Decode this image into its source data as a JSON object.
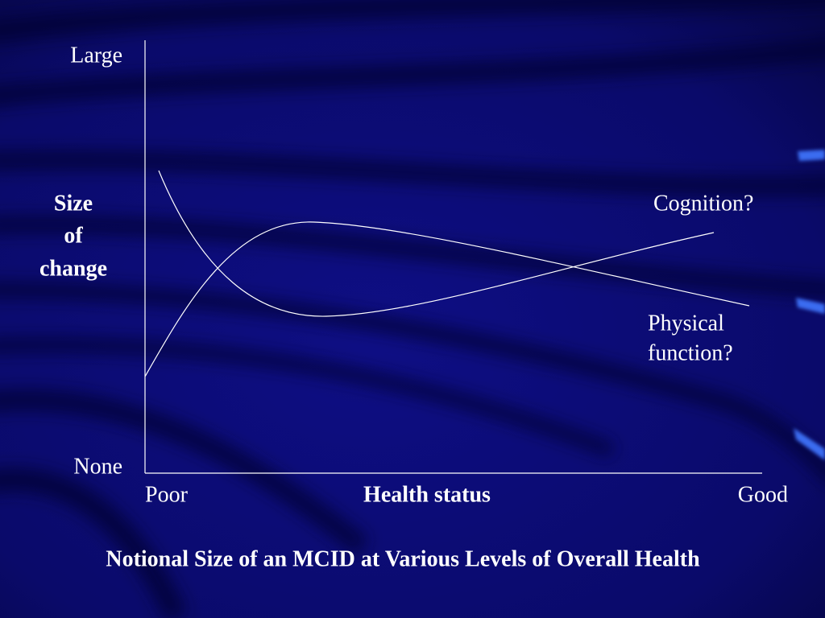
{
  "axes": {
    "y_top": "Large",
    "y_bottom": "None",
    "y_title": [
      "Size",
      "of",
      "change"
    ],
    "x_left": "Poor",
    "x_title": "Health status",
    "x_right": "Good"
  },
  "curves": [
    {
      "label": [
        "Cognition?"
      ]
    },
    {
      "label": [
        "Physical",
        "function?"
      ]
    }
  ],
  "caption": "Notional Size of an MCID at Various Levels of Overall Health"
}
